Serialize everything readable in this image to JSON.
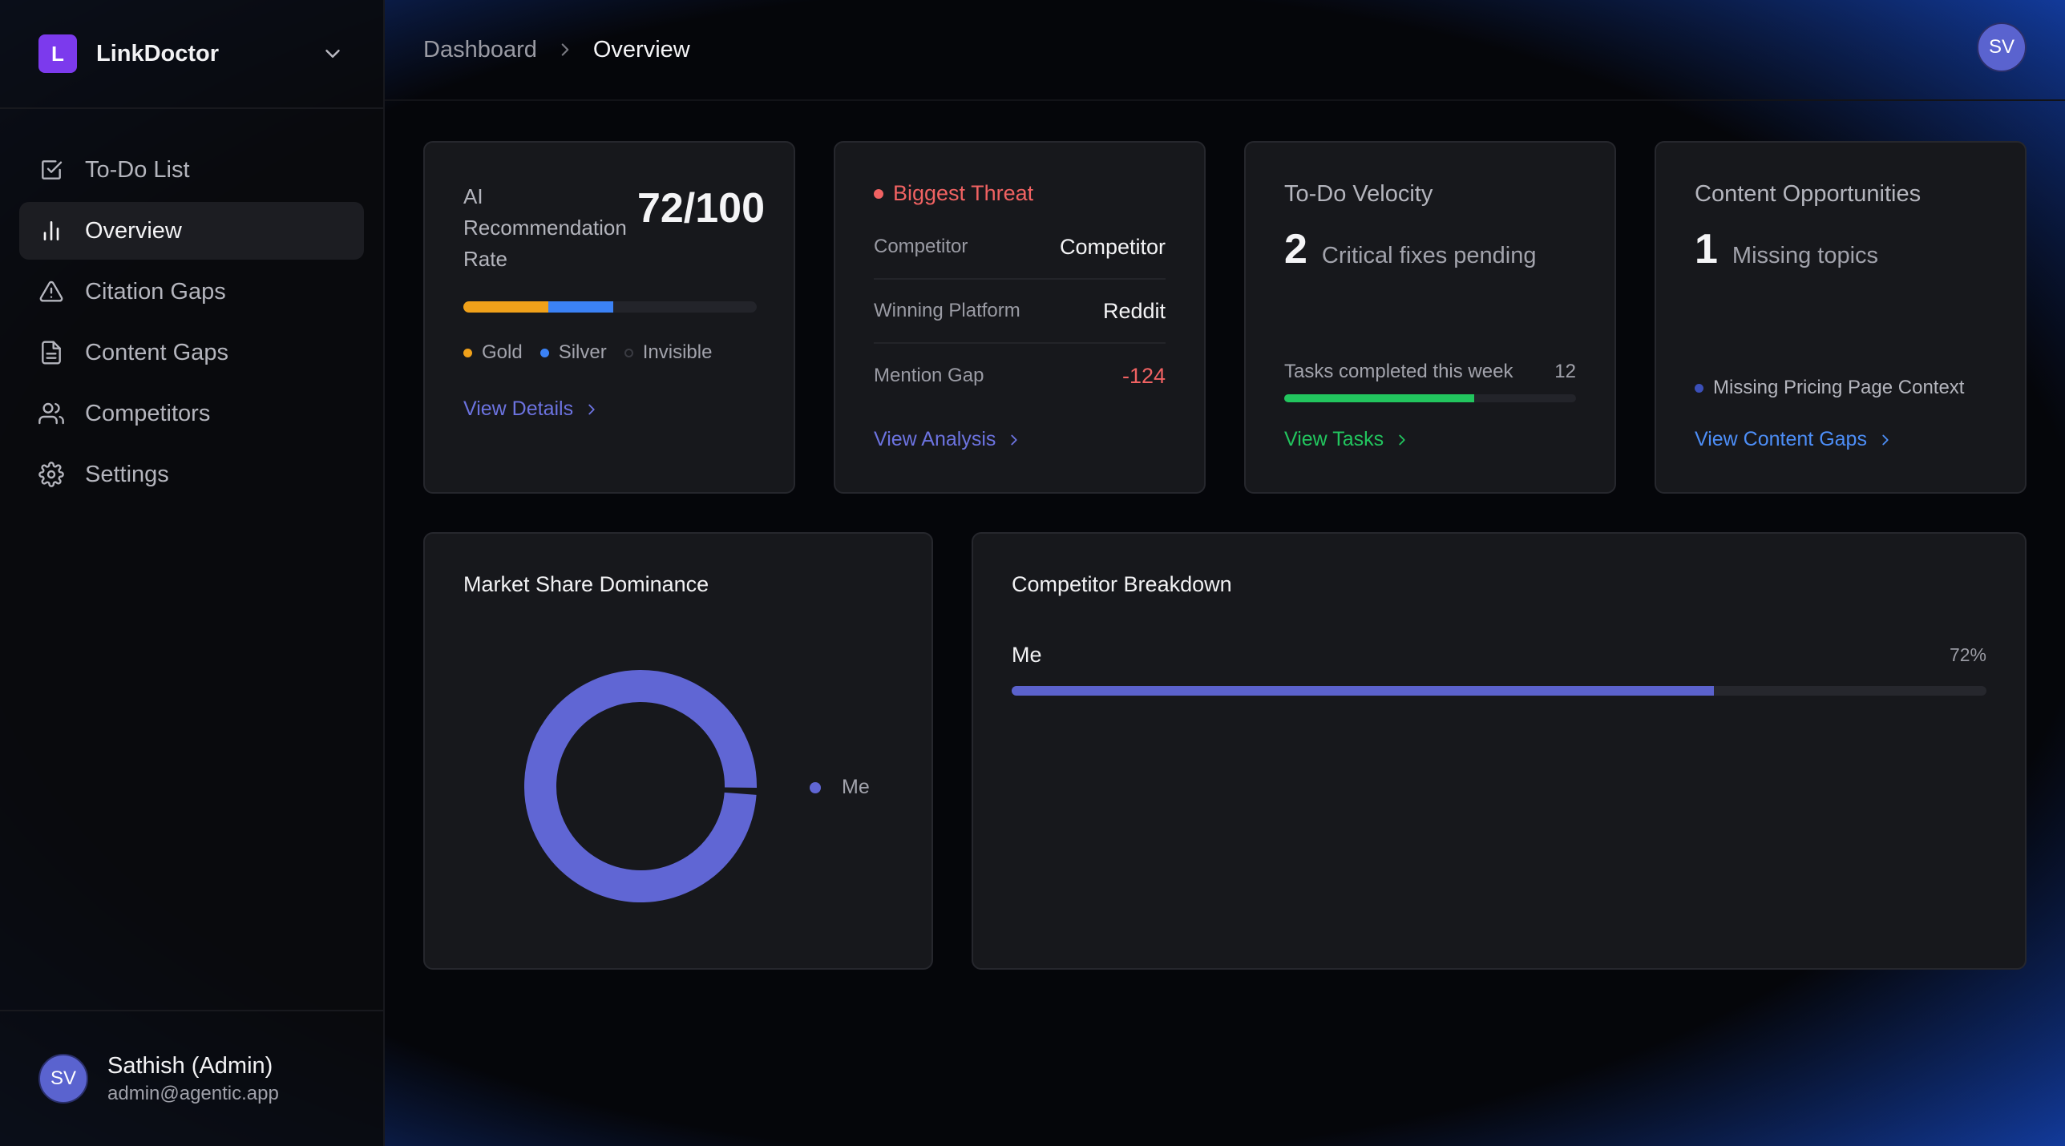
{
  "brand": {
    "logo_letter": "L",
    "name": "LinkDoctor"
  },
  "nav": {
    "items": [
      {
        "label": "To-Do List",
        "icon": "checkbox-icon",
        "active": false
      },
      {
        "label": "Overview",
        "icon": "bar-chart-icon",
        "active": true
      },
      {
        "label": "Citation Gaps",
        "icon": "warning-triangle-icon",
        "active": false
      },
      {
        "label": "Content Gaps",
        "icon": "document-icon",
        "active": false
      },
      {
        "label": "Competitors",
        "icon": "users-icon",
        "active": false
      },
      {
        "label": "Settings",
        "icon": "gear-icon",
        "active": false
      }
    ]
  },
  "user": {
    "initials": "SV",
    "name": "Sathish (Admin)",
    "email": "admin@agentic.app"
  },
  "breadcrumb": {
    "parent": "Dashboard",
    "current": "Overview"
  },
  "top_avatar": {
    "initials": "SV"
  },
  "cards": {
    "ai_rate": {
      "title": "AI Recommendation Rate",
      "score": "72/100",
      "bar": {
        "gold_fraction": 0.29,
        "silver_fraction": 0.22
      },
      "legend": {
        "gold": "Gold",
        "silver": "Silver",
        "invisible": "Invisible"
      },
      "link": "View Details"
    },
    "threat": {
      "title": "Biggest Threat",
      "rows": [
        {
          "key": "Competitor",
          "value": "Competitor"
        },
        {
          "key": "Winning Platform",
          "value": "Reddit"
        },
        {
          "key": "Mention Gap",
          "value": "-124"
        }
      ],
      "link": "View Analysis"
    },
    "velocity": {
      "title": "To-Do Velocity",
      "count": "2",
      "count_label": "Critical fixes pending",
      "tasks_label": "Tasks completed this week",
      "tasks_value": "12",
      "progress_fraction": 0.65,
      "link": "View Tasks"
    },
    "opportunities": {
      "title": "Content Opportunities",
      "count": "1",
      "count_label": "Missing topics",
      "item": "Missing Pricing Page Context",
      "link": "View Content Gaps"
    }
  },
  "market_share": {
    "title": "Market Share Dominance",
    "legend": "Me",
    "share_fraction": 0.995
  },
  "competitor_breakdown": {
    "title": "Competitor Breakdown",
    "rows": [
      {
        "name": "Me",
        "percent_label": "72%",
        "fraction": 0.72
      }
    ]
  },
  "colors": {
    "accent": "#6066d4",
    "gold": "#f0a11a",
    "silver": "#3b82f6",
    "danger": "#f06262",
    "success": "#22c55e",
    "link_blue": "#4d8ef7"
  }
}
